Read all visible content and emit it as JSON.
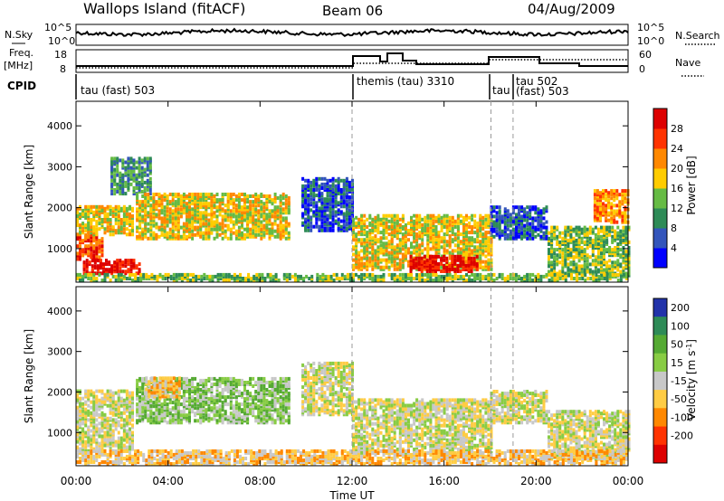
{
  "header": {
    "station": "Wallops Island (fitACF)",
    "beam": "Beam 06",
    "date": "04/Aug/2009"
  },
  "top_panels": {
    "nsky_label": "N.Sky",
    "nsky_ticks": [
      "10^5",
      "10^0"
    ],
    "nsearch_label": "N.Search",
    "nsearch_ticks": [
      "10^5",
      "10^0"
    ],
    "freq_label_1": "Freq.",
    "freq_label_2": "[MHz]",
    "freq_ticks": [
      "18",
      "8"
    ],
    "nave_label": "Nave",
    "nave_ticks": [
      "60",
      "0"
    ],
    "cpid_label": "CPID",
    "cpid_segments": [
      {
        "label": "tau (fast) 503",
        "start": 0,
        "end": 12
      },
      {
        "label": "themis (tau) 3310",
        "start": 12,
        "end": 18
      },
      {
        "label": "tau",
        "start": 18,
        "end": 19
      },
      {
        "label": "tau 502",
        "start": 19,
        "end": 24
      },
      {
        "label": "(fast) 503",
        "start": 19,
        "end": 24
      }
    ]
  },
  "chart_data": [
    {
      "type": "heatmap",
      "panel": "power",
      "ylabel": "Slant Range [km]",
      "yticks": [
        "1000",
        "2000",
        "3000",
        "4000"
      ],
      "ylim": [
        180,
        4600
      ],
      "xlim": [
        0,
        24
      ],
      "colorbar_label": "Power [dB]",
      "colorbar_ticks": [
        "4",
        "8",
        "12",
        "16",
        "20",
        "24",
        "28"
      ],
      "colors": [
        "#0000ff",
        "#3355bb",
        "#2e8b57",
        "#66bb44",
        "#ffcc00",
        "#ff8800",
        "#ff3300",
        "#dd0000"
      ],
      "echo_regions": [
        {
          "t0": 0.0,
          "t1": 1.2,
          "r0": 700,
          "r1": 1300,
          "level": 6
        },
        {
          "t0": 0.3,
          "t1": 2.8,
          "r0": 350,
          "r1": 700,
          "level": 7
        },
        {
          "t0": 0.0,
          "t1": 2.5,
          "r0": 1300,
          "r1": 2000,
          "level": 4
        },
        {
          "t0": 1.5,
          "t1": 3.2,
          "r0": 2300,
          "r1": 3200,
          "level": 2
        },
        {
          "t0": 2.6,
          "t1": 9.2,
          "r0": 1200,
          "r1": 2300,
          "level": 4
        },
        {
          "t0": 9.8,
          "t1": 12.0,
          "r0": 1400,
          "r1": 2700,
          "level": 1
        },
        {
          "t0": 12.0,
          "t1": 18.0,
          "r0": 450,
          "r1": 1800,
          "level": 4
        },
        {
          "t0": 14.5,
          "t1": 17.5,
          "r0": 400,
          "r1": 800,
          "level": 7
        },
        {
          "t0": 18.0,
          "t1": 20.5,
          "r0": 1200,
          "r1": 2000,
          "level": 1
        },
        {
          "t0": 20.5,
          "t1": 24.0,
          "r0": 300,
          "r1": 1500,
          "level": 3
        },
        {
          "t0": 22.5,
          "t1": 24.0,
          "r0": 1600,
          "r1": 2400,
          "level": 5
        },
        {
          "t0": 0.0,
          "t1": 24.0,
          "r0": 180,
          "r1": 360,
          "level": 3
        }
      ]
    },
    {
      "type": "heatmap",
      "panel": "velocity",
      "ylabel": "Slant Range [km]",
      "yticks": [
        "1000",
        "2000",
        "3000",
        "4000"
      ],
      "ylim": [
        180,
        4600
      ],
      "xlim": [
        0,
        24
      ],
      "xticks": [
        "00:00",
        "04:00",
        "08:00",
        "12:00",
        "16:00",
        "20:00",
        "00:00"
      ],
      "xlabel": "Time UT",
      "colorbar_label": "Velocity [m s^-1]",
      "colorbar_ticks": [
        "200",
        "100",
        "50",
        "15",
        "-15",
        "-50",
        "-100",
        "-200"
      ],
      "colors": [
        "#2233aa",
        "#2e8b57",
        "#55aa33",
        "#88cc44",
        "#c8c8c8",
        "#ffcc44",
        "#ff8800",
        "#ff3300",
        "#dd0000"
      ],
      "echo_regions": [
        {
          "t0": 0.0,
          "t1": 2.5,
          "r0": 500,
          "r1": 1300,
          "level": 4
        },
        {
          "t0": 0.0,
          "t1": 2.5,
          "r0": 1300,
          "r1": 2000,
          "level": 4
        },
        {
          "t0": 2.6,
          "t1": 9.2,
          "r0": 1200,
          "r1": 2300,
          "level": 3
        },
        {
          "t0": 3.0,
          "t1": 4.5,
          "r0": 1800,
          "r1": 2300,
          "level": 5
        },
        {
          "t0": 9.8,
          "t1": 12.0,
          "r0": 1400,
          "r1": 2700,
          "level": 4
        },
        {
          "t0": 12.0,
          "t1": 18.0,
          "r0": 450,
          "r1": 1800,
          "level": 4
        },
        {
          "t0": 18.0,
          "t1": 20.5,
          "r0": 1200,
          "r1": 2000,
          "level": 4
        },
        {
          "t0": 20.5,
          "t1": 24.0,
          "r0": 300,
          "r1": 1500,
          "level": 4
        },
        {
          "t0": 0.0,
          "t1": 24.0,
          "r0": 180,
          "r1": 500,
          "level": 5
        }
      ]
    }
  ]
}
